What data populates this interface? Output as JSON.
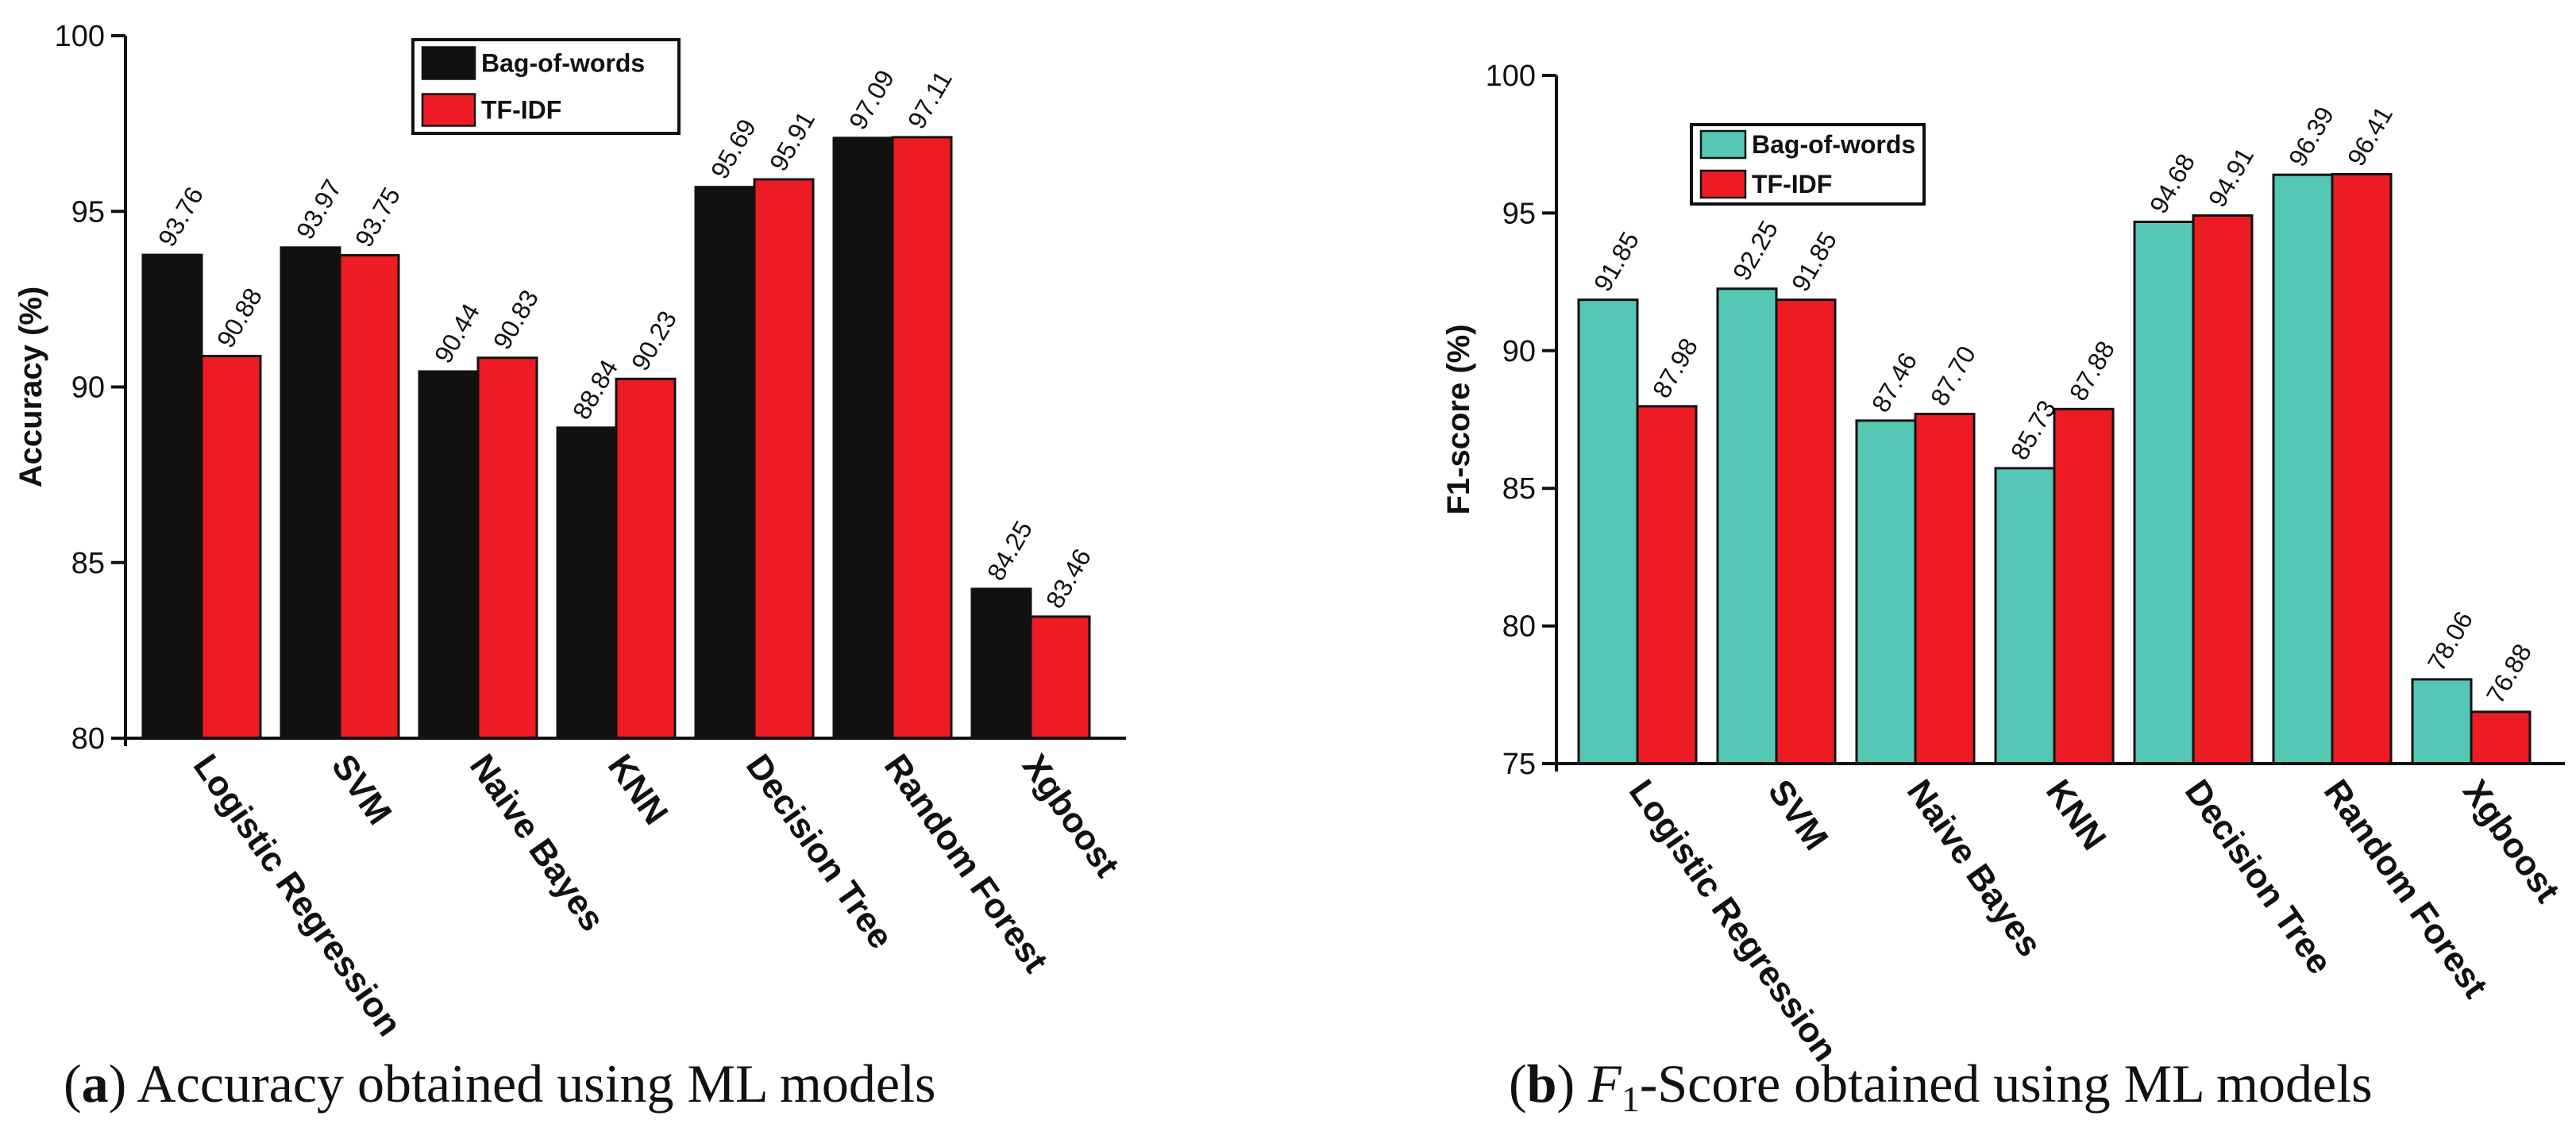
{
  "chart_data": [
    {
      "type": "bar",
      "ylabel": "Accuracy (%)",
      "ylim": [
        80,
        100
      ],
      "yticks": [
        "80",
        "85",
        "90",
        "95",
        "100"
      ],
      "categories": [
        "Logistic Regression",
        "SVM",
        "Naive Bayes",
        "KNN",
        "Decision Tree",
        "Random Forest",
        "Xgboost"
      ],
      "series": [
        {
          "name": "Bag-of-words",
          "color": "#111111",
          "values": [
            93.76,
            93.97,
            90.44,
            88.84,
            95.69,
            97.09,
            84.25
          ],
          "labels": [
            "93.76",
            "93.97",
            "90.44",
            "88.84",
            "95.69",
            "97.09",
            "84.25"
          ]
        },
        {
          "name": "TF-IDF",
          "color": "#ed1c24",
          "values": [
            90.88,
            93.75,
            90.83,
            90.23,
            95.91,
            97.11,
            83.46
          ],
          "labels": [
            "90.88",
            "93.75",
            "90.83",
            "90.23",
            "95.91",
            "97.11",
            "83.46"
          ]
        }
      ],
      "legend": "top-center",
      "caption": {
        "letter": "a",
        "text": " Accuracy obtained using ML models"
      }
    },
    {
      "type": "bar",
      "ylabel": "F1-score (%)",
      "ylim": [
        75,
        100
      ],
      "yticks": [
        "75",
        "80",
        "85",
        "90",
        "95",
        "100"
      ],
      "categories": [
        "Logistic Regression",
        "SVM",
        "Naive Bayes",
        "KNN",
        "Decision Tree",
        "Random Forest",
        "Xgboost"
      ],
      "series": [
        {
          "name": "Bag-of-words",
          "color": "#55c7b5",
          "values": [
            91.85,
            92.25,
            87.46,
            85.73,
            94.68,
            96.39,
            78.06
          ],
          "labels": [
            "91.85",
            "92.25",
            "87.46",
            "85.73",
            "94.68",
            "96.39",
            "78.06"
          ]
        },
        {
          "name": "TF-IDF",
          "color": "#ed1c24",
          "values": [
            87.98,
            91.85,
            87.7,
            87.88,
            94.91,
            96.41,
            76.88
          ],
          "labels": [
            "87.98",
            "91.85",
            "87.70",
            "87.88",
            "94.91",
            "96.41",
            "76.88"
          ]
        }
      ],
      "legend": "top-left",
      "caption": {
        "letter": "b",
        "italic": "F",
        "subscript": "1",
        "text": "-Score obtained using ML models"
      }
    }
  ]
}
